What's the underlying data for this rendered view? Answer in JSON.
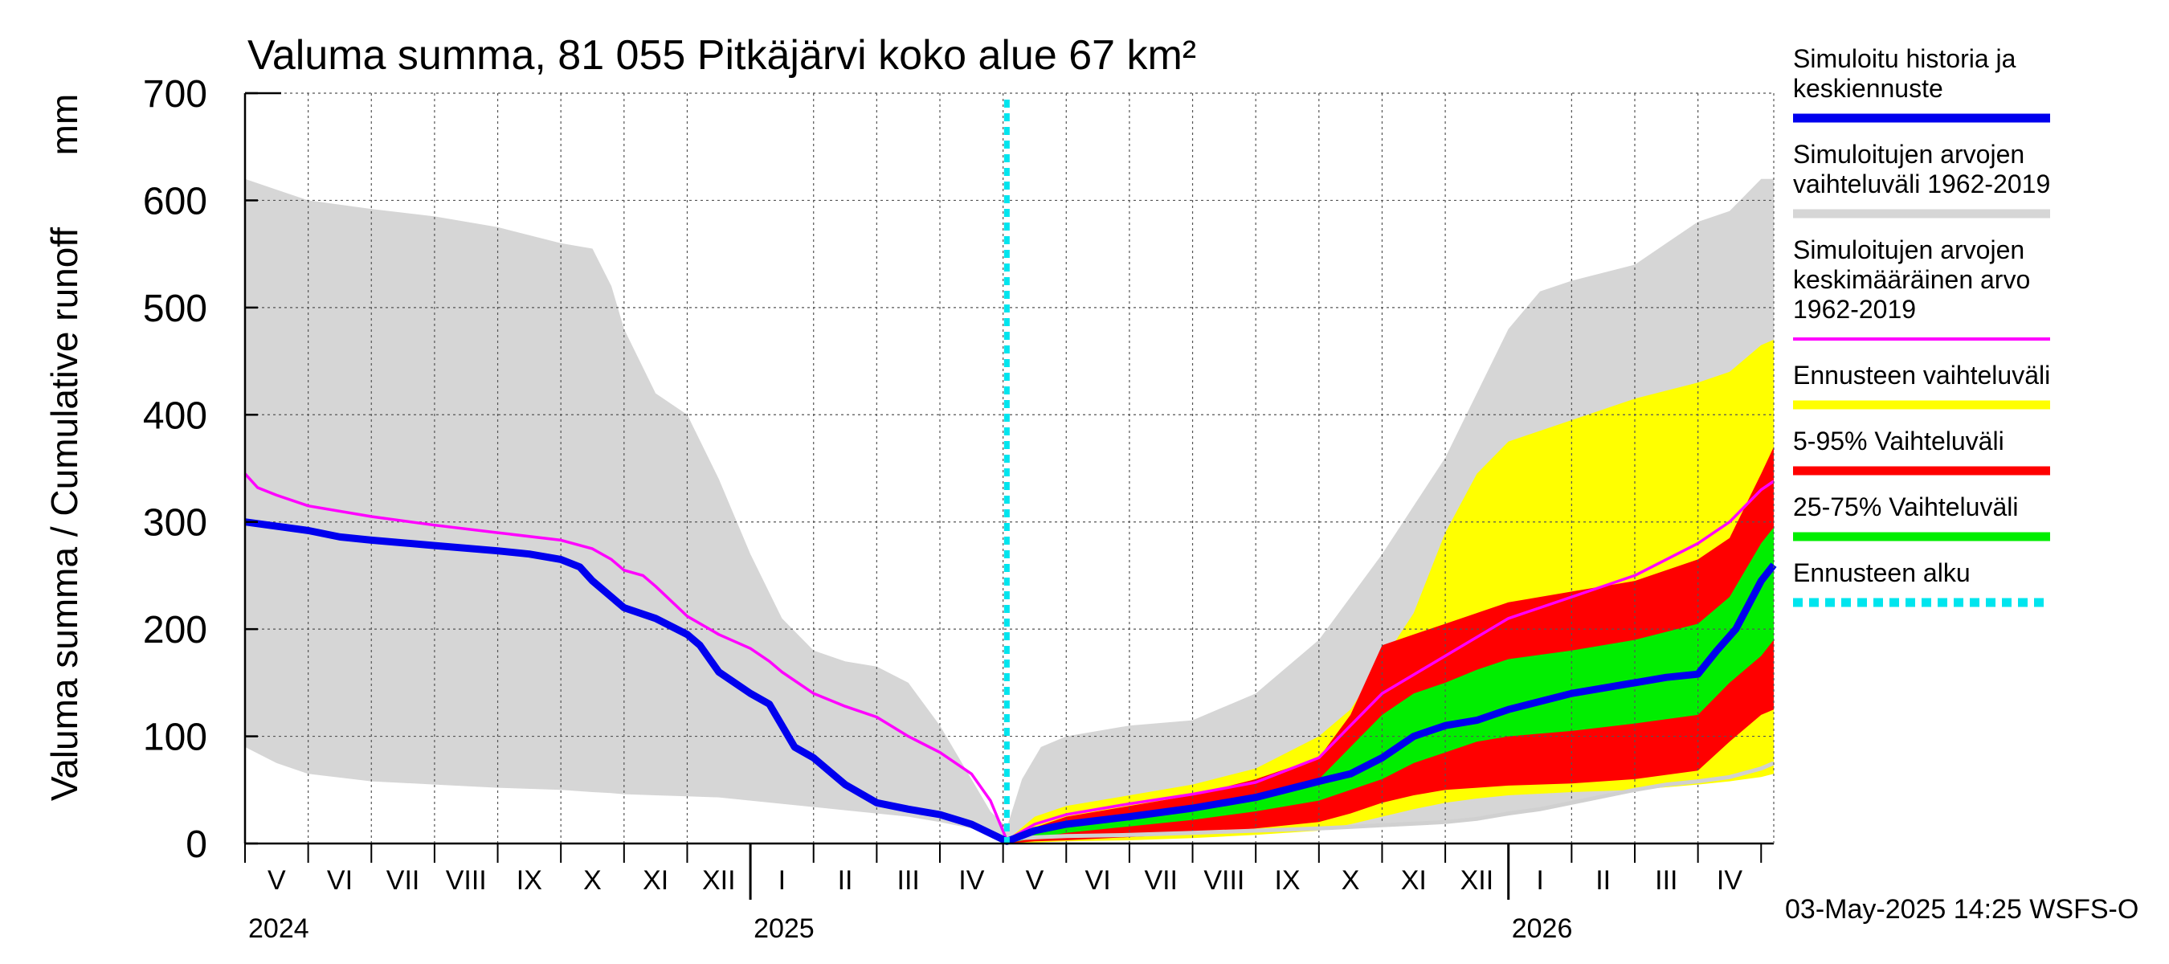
{
  "chart_data": {
    "type": "area",
    "title": "Valuma summa, 81 055 Pitkäjärvi koko alue 67 km²",
    "ylabel": "Valuma summa / Cumulative runoff",
    "yunit": "mm",
    "ylim": [
      0,
      700
    ],
    "yticks": [
      "0",
      "100",
      "200",
      "300",
      "400",
      "500",
      "600",
      "700"
    ],
    "x_unit": "months since start of May 2024",
    "xlim": [
      0,
      24.2
    ],
    "forecast_start": 12.06,
    "month_labels": [
      "V",
      "VI",
      "VII",
      "VIII",
      "IX",
      "X",
      "XI",
      "XII",
      "I",
      "II",
      "III",
      "IV",
      "V",
      "VI",
      "VII",
      "VIII",
      "IX",
      "X",
      "XI",
      "XII",
      "I",
      "II",
      "III",
      "IV"
    ],
    "year_labels": [
      {
        "label": "2024",
        "at": 0
      },
      {
        "label": "2025",
        "at": 8
      },
      {
        "label": "2026",
        "at": 20
      }
    ],
    "timestamp": "03-May-2025 14:25 WSFS-O",
    "series": [
      {
        "name": "Simuloitujen arvojen vaihteluväli 1962-2019",
        "color": "#d6d6d6",
        "kind": "band",
        "x": [
          0,
          0.5,
          1,
          2,
          3,
          4,
          5,
          5.5,
          5.8,
          6,
          6.5,
          7,
          7.5,
          8,
          8.5,
          9,
          9.5,
          10,
          10.5,
          11,
          11.5,
          11.8,
          12.06,
          12.3,
          12.6,
          13,
          14,
          15,
          16,
          17,
          18,
          19,
          19.5,
          20,
          20.5,
          21,
          22,
          22.5,
          23,
          23.5,
          24,
          24.2
        ],
        "upper": [
          620,
          610,
          600,
          592,
          585,
          575,
          560,
          555,
          520,
          480,
          420,
          400,
          340,
          270,
          210,
          180,
          170,
          165,
          150,
          110,
          60,
          30,
          15,
          60,
          90,
          100,
          110,
          115,
          140,
          190,
          270,
          360,
          420,
          480,
          515,
          525,
          540,
          560,
          580,
          590,
          620,
          620
        ],
        "lower": [
          90,
          75,
          65,
          58,
          55,
          52,
          50,
          48,
          47,
          46,
          45,
          44,
          43,
          40,
          37,
          34,
          31,
          28,
          25,
          20,
          14,
          8,
          2,
          5,
          6,
          7,
          8,
          10,
          12,
          14,
          17,
          20,
          23,
          28,
          32,
          38,
          50,
          55,
          58,
          62,
          70,
          75
        ]
      },
      {
        "name": "Ennusteen vaihteluväli",
        "color": "#ffff00",
        "kind": "band",
        "x": [
          12.06,
          12.5,
          13,
          14,
          15,
          16,
          17,
          17.5,
          18,
          18.5,
          19,
          19.5,
          20,
          21,
          22,
          23,
          23.5,
          24,
          24.2
        ],
        "upper": [
          3,
          25,
          35,
          45,
          55,
          70,
          100,
          125,
          170,
          215,
          290,
          345,
          375,
          395,
          415,
          430,
          440,
          465,
          470
        ],
        "lower": [
          0,
          1,
          2,
          3,
          5,
          8,
          12,
          18,
          25,
          32,
          38,
          42,
          45,
          48,
          50,
          55,
          58,
          62,
          65
        ]
      },
      {
        "name": "5-95% Vaihteluväli",
        "color": "#ff0000",
        "kind": "band",
        "x": [
          12.06,
          12.5,
          13,
          14,
          15,
          16,
          17,
          17.5,
          18,
          18.5,
          19,
          19.5,
          20,
          21,
          22,
          23,
          23.5,
          24,
          24.2
        ],
        "upper": [
          2,
          15,
          25,
          35,
          45,
          60,
          80,
          120,
          185,
          195,
          205,
          215,
          225,
          235,
          245,
          265,
          285,
          345,
          370
        ],
        "lower": [
          0,
          2,
          3,
          6,
          9,
          14,
          20,
          28,
          38,
          45,
          50,
          52,
          54,
          56,
          60,
          68,
          95,
          120,
          125
        ]
      },
      {
        "name": "25-75% Vaihteluväli",
        "color": "#00ee00",
        "kind": "band",
        "x": [
          12.06,
          12.5,
          13,
          14,
          15,
          16,
          17,
          17.5,
          18,
          18.5,
          19,
          19.5,
          20,
          21,
          22,
          23,
          23.5,
          24,
          24.2
        ],
        "upper": [
          1,
          10,
          18,
          27,
          35,
          45,
          60,
          90,
          120,
          140,
          150,
          162,
          172,
          180,
          190,
          205,
          230,
          280,
          295
        ],
        "lower": [
          0,
          5,
          10,
          16,
          22,
          30,
          40,
          50,
          60,
          75,
          85,
          95,
          100,
          105,
          112,
          120,
          150,
          175,
          190
        ]
      },
      {
        "name": "Simuloitujen arvojen keskimääräinen arvo 1962-2019",
        "color": "#ff00ff",
        "kind": "line",
        "x": [
          0,
          0.2,
          0.5,
          1,
          2,
          3,
          4,
          5,
          5.5,
          5.8,
          6,
          6.3,
          6.5,
          7,
          7.5,
          8,
          8.3,
          8.5,
          9,
          9.5,
          10,
          10.5,
          11,
          11.5,
          11.8,
          12.06,
          12.5,
          13,
          14,
          15,
          16,
          17,
          17.5,
          18,
          19,
          20,
          21,
          22,
          23,
          23.5,
          24,
          24.2
        ],
        "values": [
          345,
          332,
          325,
          315,
          305,
          297,
          290,
          283,
          275,
          265,
          255,
          250,
          240,
          212,
          195,
          182,
          170,
          160,
          140,
          128,
          118,
          100,
          85,
          65,
          40,
          3,
          18,
          27,
          37,
          46,
          57,
          80,
          110,
          140,
          175,
          210,
          230,
          250,
          280,
          300,
          330,
          338
        ]
      },
      {
        "name": "Simuloitu historia ja keskiennuste",
        "color": "#0000ee",
        "kind": "line",
        "x": [
          0,
          0.5,
          1,
          1.5,
          2,
          3,
          4,
          4.5,
          5,
          5.3,
          5.5,
          6,
          6.5,
          7,
          7.2,
          7.5,
          8,
          8.3,
          8.7,
          9,
          9.3,
          9.5,
          10,
          10.5,
          11,
          11.5,
          12.06,
          12.5,
          13,
          14,
          15,
          16,
          17,
          17.5,
          18,
          18.5,
          19,
          19.5,
          20,
          21,
          22,
          22.5,
          23,
          23.3,
          23.6,
          24,
          24.2
        ],
        "values": [
          300,
          296,
          292,
          286,
          283,
          278,
          273,
          270,
          265,
          258,
          245,
          220,
          210,
          195,
          185,
          160,
          140,
          130,
          90,
          80,
          65,
          55,
          38,
          32,
          27,
          18,
          2,
          12,
          18,
          25,
          33,
          43,
          58,
          65,
          80,
          100,
          110,
          115,
          125,
          140,
          150,
          155,
          158,
          180,
          200,
          245,
          260
        ]
      },
      {
        "name": "Ennusteen alku",
        "color": "#00e5ee",
        "kind": "vline"
      }
    ]
  },
  "legend": [
    {
      "lines": [
        "Simuloitu historia ja",
        "keskiennuste"
      ],
      "color": "#0000ee",
      "style": "solid"
    },
    {
      "lines": [
        "Simuloitujen arvojen",
        "vaihteluväli 1962-2019"
      ],
      "color": "#d6d6d6",
      "style": "solid"
    },
    {
      "lines": [
        "Simuloitujen arvojen",
        "keskimääräinen arvo",
        "    1962-2019"
      ],
      "color": "#ff00ff",
      "style": "thin"
    },
    {
      "lines": [
        "Ennusteen vaihteluväli"
      ],
      "color": "#ffff00",
      "style": "solid"
    },
    {
      "lines": [
        "5-95% Vaihteluväli"
      ],
      "color": "#ff0000",
      "style": "solid"
    },
    {
      "lines": [
        "25-75% Vaihteluväli"
      ],
      "color": "#00ee00",
      "style": "solid"
    },
    {
      "lines": [
        "Ennusteen alku"
      ],
      "color": "#00e5ee",
      "style": "dashed"
    }
  ]
}
